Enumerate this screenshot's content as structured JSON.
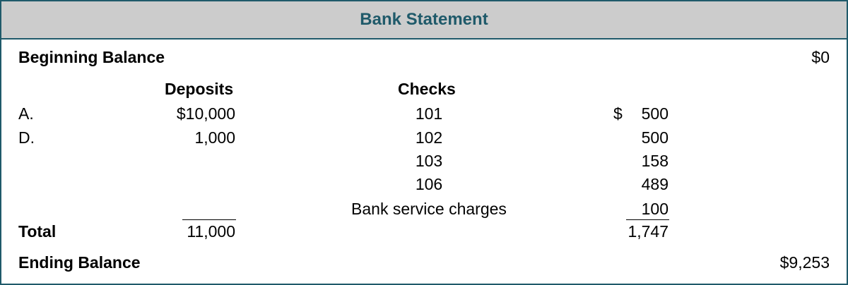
{
  "title": "Bank Statement",
  "beginning_balance": {
    "label": "Beginning Balance",
    "value": "$0"
  },
  "columns": {
    "deposits": "Deposits",
    "checks": "Checks"
  },
  "rows": [
    {
      "label": "A.",
      "deposit": "$10,000",
      "check": "101",
      "currency": "$",
      "amount": "500"
    },
    {
      "label": "D.",
      "deposit": "1,000",
      "check": "102",
      "currency": "",
      "amount": "500"
    },
    {
      "label": "",
      "deposit": "",
      "check": "103",
      "currency": "",
      "amount": "158"
    },
    {
      "label": "",
      "deposit": "",
      "check": "106",
      "currency": "",
      "amount": "489"
    },
    {
      "label": "",
      "deposit": "",
      "check": "Bank service charges",
      "currency": "",
      "amount": "100"
    }
  ],
  "total": {
    "label": "Total",
    "deposits": "11,000",
    "checks": "1,747"
  },
  "ending_balance": {
    "label": "Ending Balance",
    "value": "$9,253"
  },
  "colors": {
    "header_bg": "#cccccc",
    "accent": "#1f5a6a"
  }
}
